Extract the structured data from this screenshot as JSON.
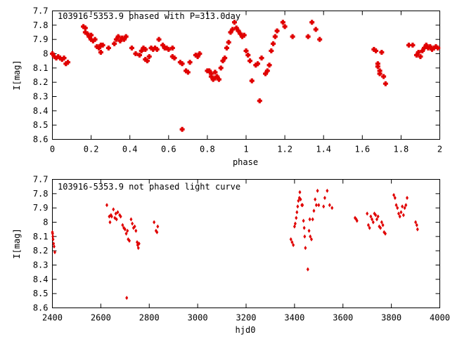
{
  "chart_data": [
    {
      "type": "scatter",
      "title": "103916-5353.9 phased with P=313.0day",
      "xlabel": "phase",
      "ylabel": "I[mag]",
      "xlim": [
        0,
        2
      ],
      "ylim": [
        7.7,
        8.6
      ],
      "y_inverted": true,
      "grid": false,
      "marker_color": "#e00000",
      "x_ticks": [
        "0",
        "0.2",
        "0.4",
        "0.6",
        "0.8",
        "1",
        "1.2",
        "1.4",
        "1.6",
        "1.8",
        "2"
      ],
      "x_tick_values": [
        0,
        0.2,
        0.4,
        0.6,
        0.8,
        1.0,
        1.2,
        1.4,
        1.6,
        1.8,
        2.0
      ],
      "y_ticks": [
        "7.7",
        "7.8",
        "7.9",
        "8",
        "8.1",
        "8.2",
        "8.3",
        "8.4",
        "8.5",
        "8.6"
      ],
      "y_tick_values": [
        7.7,
        7.8,
        7.9,
        8.0,
        8.1,
        8.2,
        8.3,
        8.4,
        8.5,
        8.6
      ],
      "points": [
        [
          0.0,
          8.0
        ],
        [
          0.01,
          8.02
        ],
        [
          0.02,
          8.03
        ],
        [
          0.03,
          8.02
        ],
        [
          0.04,
          8.03
        ],
        [
          0.05,
          8.04
        ],
        [
          0.06,
          8.03
        ],
        [
          0.07,
          8.07
        ],
        [
          0.08,
          8.06
        ],
        [
          0.16,
          7.81
        ],
        [
          0.17,
          7.82
        ],
        [
          0.17,
          7.85
        ],
        [
          0.18,
          7.86
        ],
        [
          0.19,
          7.88
        ],
        [
          0.2,
          7.9
        ],
        [
          0.2,
          7.87
        ],
        [
          0.21,
          7.91
        ],
        [
          0.22,
          7.9
        ],
        [
          0.23,
          7.95
        ],
        [
          0.24,
          7.96
        ],
        [
          0.25,
          7.99
        ],
        [
          0.25,
          7.94
        ],
        [
          0.26,
          7.94
        ],
        [
          0.29,
          7.96
        ],
        [
          0.32,
          7.93
        ],
        [
          0.33,
          7.9
        ],
        [
          0.34,
          7.88
        ],
        [
          0.35,
          7.91
        ],
        [
          0.36,
          7.89
        ],
        [
          0.37,
          7.9
        ],
        [
          0.38,
          7.88
        ],
        [
          0.41,
          7.96
        ],
        [
          0.43,
          8.0
        ],
        [
          0.45,
          8.01
        ],
        [
          0.46,
          7.98
        ],
        [
          0.47,
          7.96
        ],
        [
          0.48,
          7.97
        ],
        [
          0.48,
          8.04
        ],
        [
          0.49,
          8.05
        ],
        [
          0.5,
          8.02
        ],
        [
          0.51,
          7.96
        ],
        [
          0.52,
          7.97
        ],
        [
          0.53,
          7.96
        ],
        [
          0.54,
          7.97
        ],
        [
          0.55,
          7.9
        ],
        [
          0.57,
          7.94
        ],
        [
          0.58,
          7.96
        ],
        [
          0.59,
          7.96
        ],
        [
          0.6,
          7.97
        ],
        [
          0.62,
          7.96
        ],
        [
          0.62,
          8.02
        ],
        [
          0.63,
          8.03
        ],
        [
          0.66,
          8.06
        ],
        [
          0.67,
          8.07
        ],
        [
          0.67,
          8.53
        ],
        [
          0.69,
          8.12
        ],
        [
          0.7,
          8.13
        ],
        [
          0.71,
          8.06
        ],
        [
          0.74,
          8.01
        ],
        [
          0.75,
          8.02
        ],
        [
          0.76,
          8.0
        ],
        [
          0.8,
          8.12
        ],
        [
          0.81,
          8.12
        ],
        [
          0.82,
          8.14
        ],
        [
          0.82,
          8.16
        ],
        [
          0.83,
          8.18
        ],
        [
          0.84,
          8.17
        ],
        [
          0.84,
          8.13
        ],
        [
          0.85,
          8.16
        ],
        [
          0.86,
          8.18
        ],
        [
          0.87,
          8.1
        ],
        [
          0.88,
          8.05
        ],
        [
          0.89,
          8.03
        ],
        [
          0.9,
          7.96
        ],
        [
          0.91,
          7.92
        ],
        [
          0.92,
          7.85
        ],
        [
          0.93,
          7.83
        ],
        [
          0.94,
          7.78
        ],
        [
          0.95,
          7.82
        ],
        [
          0.96,
          7.84
        ],
        [
          0.97,
          7.86
        ],
        [
          0.98,
          7.88
        ],
        [
          0.99,
          7.87
        ],
        [
          1.0,
          7.98
        ],
        [
          1.01,
          8.01
        ],
        [
          1.02,
          8.05
        ],
        [
          1.03,
          8.19
        ],
        [
          1.05,
          8.08
        ],
        [
          1.06,
          8.07
        ],
        [
          1.07,
          8.33
        ],
        [
          1.08,
          8.03
        ],
        [
          1.1,
          8.14
        ],
        [
          1.11,
          8.12
        ],
        [
          1.12,
          8.08
        ],
        [
          1.13,
          7.98
        ],
        [
          1.14,
          7.93
        ],
        [
          1.15,
          7.88
        ],
        [
          1.16,
          7.84
        ],
        [
          1.19,
          7.78
        ],
        [
          1.2,
          7.81
        ],
        [
          1.24,
          7.88
        ],
        [
          1.32,
          7.88
        ],
        [
          1.34,
          7.78
        ],
        [
          1.36,
          7.83
        ],
        [
          1.38,
          7.9
        ],
        [
          1.66,
          7.97
        ],
        [
          1.67,
          7.98
        ],
        [
          1.68,
          8.07
        ],
        [
          1.68,
          8.09
        ],
        [
          1.69,
          8.12
        ],
        [
          1.69,
          8.14
        ],
        [
          1.7,
          7.99
        ],
        [
          1.71,
          8.16
        ],
        [
          1.72,
          8.21
        ],
        [
          1.84,
          7.94
        ],
        [
          1.86,
          7.94
        ],
        [
          1.88,
          8.01
        ],
        [
          1.89,
          7.99
        ],
        [
          1.9,
          8.02
        ],
        [
          1.91,
          7.98
        ],
        [
          1.92,
          7.96
        ],
        [
          1.93,
          7.94
        ],
        [
          1.94,
          7.96
        ],
        [
          1.95,
          7.95
        ],
        [
          1.96,
          7.97
        ],
        [
          1.97,
          7.96
        ],
        [
          1.98,
          7.95
        ],
        [
          1.99,
          7.96
        ]
      ]
    },
    {
      "type": "scatter",
      "title": "103916-5353.9 not phased light curve",
      "xlabel": "hjd0",
      "ylabel": "I[mag]",
      "xlim": [
        2400,
        4000
      ],
      "ylim": [
        7.7,
        8.6
      ],
      "y_inverted": true,
      "grid": false,
      "marker_color": "#e00000",
      "x_ticks": [
        "2400",
        "2600",
        "2800",
        "3000",
        "3200",
        "3400",
        "3600",
        "3800",
        "4000"
      ],
      "x_tick_values": [
        2400,
        2600,
        2800,
        3000,
        3200,
        3400,
        3600,
        3800,
        4000
      ],
      "y_ticks": [
        "7.7",
        "7.8",
        "7.9",
        "8",
        "8.1",
        "8.2",
        "8.3",
        "8.4",
        "8.5",
        "8.6"
      ],
      "y_tick_values": [
        7.7,
        7.8,
        7.9,
        8.0,
        8.1,
        8.2,
        8.3,
        8.4,
        8.5,
        8.6
      ],
      "points": [
        [
          2400,
          8.07
        ],
        [
          2401,
          8.08
        ],
        [
          2402,
          8.1
        ],
        [
          2403,
          8.12
        ],
        [
          2405,
          8.15
        ],
        [
          2407,
          8.17
        ],
        [
          2410,
          8.21
        ],
        [
          2625,
          7.88
        ],
        [
          2635,
          7.96
        ],
        [
          2638,
          8.0
        ],
        [
          2642,
          7.95
        ],
        [
          2645,
          7.96
        ],
        [
          2652,
          7.91
        ],
        [
          2658,
          7.97
        ],
        [
          2662,
          7.94
        ],
        [
          2665,
          7.98
        ],
        [
          2670,
          7.93
        ],
        [
          2678,
          7.95
        ],
        [
          2682,
          7.96
        ],
        [
          2690,
          8.02
        ],
        [
          2695,
          8.04
        ],
        [
          2700,
          8.05
        ],
        [
          2705,
          8.08
        ],
        [
          2707,
          8.53
        ],
        [
          2710,
          8.06
        ],
        [
          2713,
          8.12
        ],
        [
          2718,
          8.13
        ],
        [
          2725,
          7.98
        ],
        [
          2730,
          8.01
        ],
        [
          2735,
          8.04
        ],
        [
          2740,
          8.03
        ],
        [
          2745,
          8.06
        ],
        [
          2750,
          8.14
        ],
        [
          2752,
          8.16
        ],
        [
          2755,
          8.18
        ],
        [
          2758,
          8.15
        ],
        [
          2820,
          8.0
        ],
        [
          2828,
          8.06
        ],
        [
          2832,
          8.07
        ],
        [
          2835,
          8.03
        ],
        [
          3385,
          8.12
        ],
        [
          3390,
          8.14
        ],
        [
          3395,
          8.16
        ],
        [
          3400,
          8.03
        ],
        [
          3403,
          8.01
        ],
        [
          3407,
          7.97
        ],
        [
          3410,
          7.93
        ],
        [
          3413,
          7.89
        ],
        [
          3416,
          7.85
        ],
        [
          3420,
          7.83
        ],
        [
          3422,
          7.79
        ],
        [
          3425,
          7.84
        ],
        [
          3430,
          7.88
        ],
        [
          3433,
          7.88
        ],
        [
          3437,
          7.99
        ],
        [
          3440,
          8.04
        ],
        [
          3442,
          8.1
        ],
        [
          3445,
          8.18
        ],
        [
          3455,
          8.33
        ],
        [
          3460,
          8.06
        ],
        [
          3463,
          7.98
        ],
        [
          3465,
          8.1
        ],
        [
          3470,
          8.12
        ],
        [
          3475,
          7.98
        ],
        [
          3480,
          7.92
        ],
        [
          3485,
          7.84
        ],
        [
          3490,
          7.88
        ],
        [
          3495,
          7.78
        ],
        [
          3500,
          7.88
        ],
        [
          3520,
          7.89
        ],
        [
          3525,
          7.83
        ],
        [
          3535,
          7.78
        ],
        [
          3545,
          7.88
        ],
        [
          3555,
          7.9
        ],
        [
          3650,
          7.97
        ],
        [
          3655,
          7.98
        ],
        [
          3658,
          7.99
        ],
        [
          3700,
          7.94
        ],
        [
          3705,
          8.02
        ],
        [
          3710,
          8.04
        ],
        [
          3715,
          7.96
        ],
        [
          3720,
          7.98
        ],
        [
          3725,
          8.0
        ],
        [
          3730,
          7.94
        ],
        [
          3735,
          7.95
        ],
        [
          3740,
          7.98
        ],
        [
          3745,
          7.96
        ],
        [
          3750,
          8.03
        ],
        [
          3755,
          8.04
        ],
        [
          3760,
          8.0
        ],
        [
          3765,
          8.02
        ],
        [
          3770,
          8.07
        ],
        [
          3775,
          8.08
        ],
        [
          3810,
          7.81
        ],
        [
          3815,
          7.83
        ],
        [
          3820,
          7.88
        ],
        [
          3825,
          7.9
        ],
        [
          3830,
          7.94
        ],
        [
          3835,
          7.96
        ],
        [
          3840,
          7.93
        ],
        [
          3845,
          7.89
        ],
        [
          3850,
          7.95
        ],
        [
          3855,
          7.9
        ],
        [
          3860,
          7.88
        ],
        [
          3865,
          7.83
        ],
        [
          3900,
          8.0
        ],
        [
          3905,
          8.02
        ],
        [
          3908,
          8.05
        ]
      ]
    }
  ]
}
